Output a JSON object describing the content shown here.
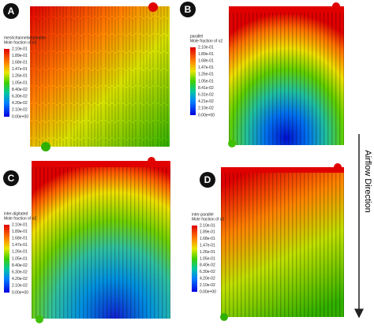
{
  "panels": [
    {
      "letter": "A",
      "legend_title": [
        "meshchannelserpentine",
        "Mole fraction of o2"
      ],
      "ticks": [
        "2.10e-01",
        "1.89e-01",
        "1.68e-01",
        "1.47e-01",
        "1.26e-01",
        "1.05e-01",
        "8.40e-02",
        "6.30e-02",
        "4.20e-02",
        "2.10e-02",
        "0.00e+00"
      ]
    },
    {
      "letter": "B",
      "legend_title": [
        "parallel",
        "Mole fraction of o2"
      ],
      "ticks": [
        "2.10e-01",
        "1.89e-01",
        "1.68e-01",
        "1.47e-01",
        "1.26e-01",
        "1.05e-01",
        "8.41e-02",
        "6.31e-02",
        "4.21e-02",
        "2.10e-02",
        "0.00e+00"
      ]
    },
    {
      "letter": "C",
      "legend_title": [
        "inter-digitated",
        "Mole fraction of o2"
      ],
      "ticks": [
        "2.10e-01",
        "1.89e-01",
        "1.68e-01",
        "1.47e-01",
        "1.26e-01",
        "1.05e-01",
        "8.40e-02",
        "6.30e-02",
        "4.20e-02",
        "2.10e-02",
        "0.00e+00"
      ]
    },
    {
      "letter": "D",
      "legend_title": [
        "inter-parallel",
        "Mole fraction of o2"
      ],
      "ticks": [
        "2.10e-01",
        "1.89e-01",
        "1.68e-01",
        "1.47e-01",
        "1.26e-01",
        "1.05e-01",
        "8.40e-02",
        "6.30e-02",
        "4.20e-02",
        "2.10e-02",
        "0.00e+00"
      ]
    }
  ],
  "airflow_label": "Airflow Direction"
}
